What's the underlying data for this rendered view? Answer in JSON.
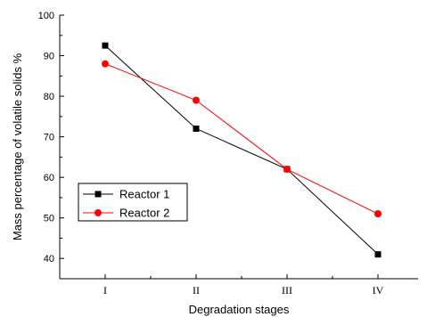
{
  "chart_data": {
    "type": "line",
    "title": "",
    "xlabel": "Degradation stages",
    "ylabel": "Mass percentage of volatile solids %",
    "categories": [
      "I",
      "II",
      "III",
      "IV"
    ],
    "ylim": [
      35,
      100
    ],
    "yticks": [
      40,
      50,
      60,
      70,
      80,
      90,
      100
    ],
    "grid": false,
    "legend_position": "bottom-left",
    "series": [
      {
        "name": "Reactor 1",
        "values": [
          92.5,
          72,
          62,
          41
        ],
        "color": "#000000",
        "marker": "square"
      },
      {
        "name": "Reactor 2",
        "values": [
          88,
          79,
          62,
          51
        ],
        "color": "#ff0000",
        "marker": "circle"
      }
    ]
  }
}
